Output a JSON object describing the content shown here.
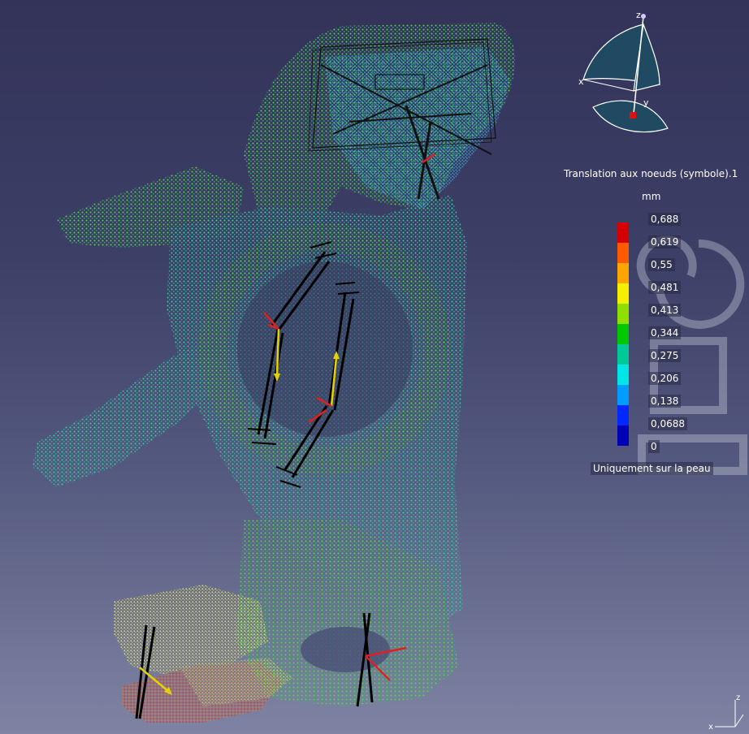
{
  "legend": {
    "title": "Translation aux noeuds (symbole).1",
    "unit": "mm",
    "values": [
      "0,688",
      "0,619",
      "0,55",
      "0,481",
      "0,413",
      "0,344",
      "0,275",
      "0,206",
      "0,138",
      "0,0688",
      "0"
    ],
    "colors": [
      "#d40000",
      "#ff5a00",
      "#ffa500",
      "#f5f000",
      "#8fe000",
      "#00c800",
      "#00c896",
      "#00e6e6",
      "#009cff",
      "#0028ff",
      "#0000b4"
    ],
    "footer": "Uniquement sur la peau"
  },
  "compass": {
    "axis_x": "x",
    "axis_y": "y",
    "axis_z": "z"
  },
  "corner_axes": {
    "axis_x": "x",
    "axis_z": "z"
  }
}
